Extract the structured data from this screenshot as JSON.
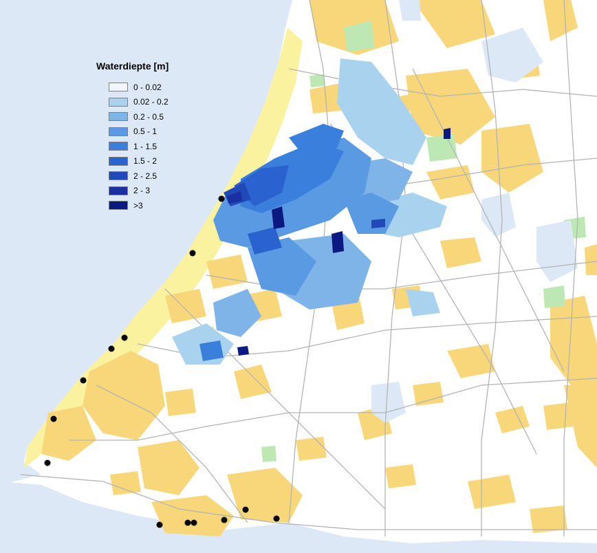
{
  "legend": {
    "title": "Waterdiepte [m]",
    "items": [
      {
        "label": "0 - 0.02",
        "color": "#f2f5fb"
      },
      {
        "label": "0.02 - 0.2",
        "color": "#a9d2ef"
      },
      {
        "label": "0.2 - 0.5",
        "color": "#7fb4e8"
      },
      {
        "label": "0.5 - 1",
        "color": "#5a9ae3"
      },
      {
        "label": "1 - 1.5",
        "color": "#3a7fdc"
      },
      {
        "label": "1.5 - 2",
        "color": "#2a62cf"
      },
      {
        "label": "2 - 2.5",
        "color": "#2149b8"
      },
      {
        "label": "2 - 3",
        "color": "#1930a2"
      },
      {
        "label": ">3",
        "color": "#0a1a80"
      }
    ]
  },
  "colors": {
    "sea": "#dde8f6",
    "land": "#ffffff",
    "dunes": "#fbf2a0",
    "urban": "#f8d77a",
    "green": "#bde8b3",
    "roads": "#b3b3b3",
    "breach": "#000000"
  }
}
